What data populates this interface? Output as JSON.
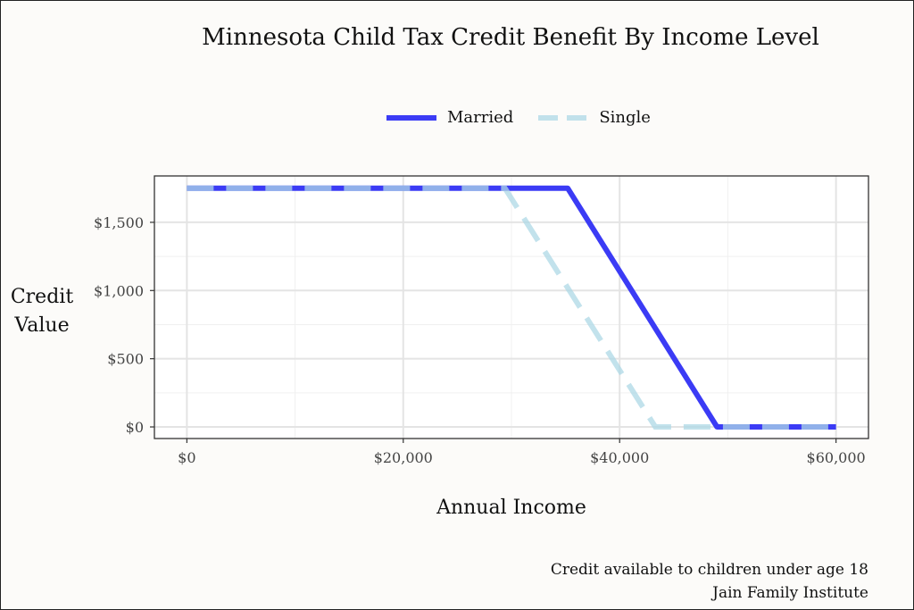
{
  "chart_data": {
    "type": "line",
    "title": "Minnesota Child Tax Credit Benefit By Income Level",
    "xlabel": "Annual Income",
    "ylabel_lines": [
      "Credit",
      "Value"
    ],
    "xlim": [
      -3000,
      63000
    ],
    "ylim": [
      -85,
      1840
    ],
    "x_ticks": [
      0,
      20000,
      40000,
      60000
    ],
    "x_tick_labels": [
      "$0",
      "$20,000",
      "$40,000",
      "$60,000"
    ],
    "y_ticks": [
      0,
      500,
      1000,
      1500
    ],
    "y_tick_labels": [
      "$0",
      "$500",
      "$1,000",
      "$1,500"
    ],
    "grid": true,
    "legend_position": "top",
    "series": [
      {
        "name": "Married",
        "color": "#3b3bf5",
        "style": "solid",
        "x": [
          0,
          35200,
          49000,
          60000
        ],
        "y": [
          1750,
          1750,
          0,
          0
        ]
      },
      {
        "name": "Single",
        "color": "#add8e6",
        "style": "dashed",
        "x": [
          0,
          29400,
          43300,
          60000
        ],
        "y": [
          1750,
          1750,
          0,
          0
        ]
      }
    ],
    "caption_lines": [
      "Credit available to children under age 18",
      "Jain Family Institute"
    ]
  }
}
